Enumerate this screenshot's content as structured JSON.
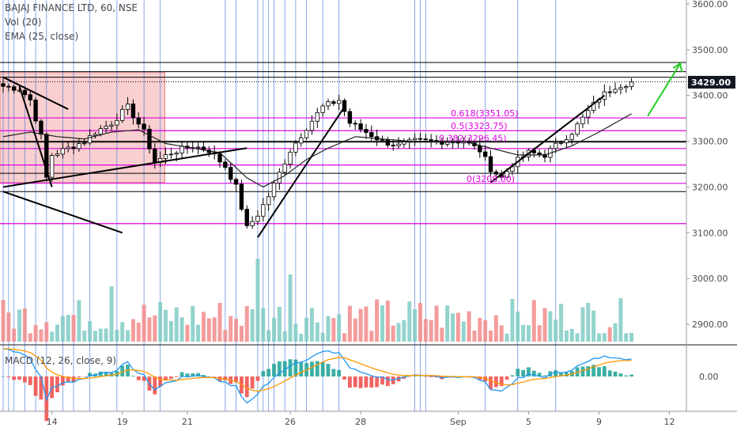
{
  "header": {
    "symbol_line": "BAJAJ FINANCE LTD, 60, NSE",
    "vol_line": "Vol (20)",
    "ema_line": "EMA (25, close)",
    "macd_line": "MACD (12, 26, close, 9)"
  },
  "price_tag": {
    "value": 3429.0,
    "text": "3429.00",
    "color": "#131722"
  },
  "colors": {
    "up": "#26a69a",
    "down": "#ef5350",
    "candle": "#000000",
    "fib": "#e000e0",
    "vline": "#3b6fd8",
    "hline": "#000000",
    "box_fill": "#f4a7a7",
    "ema": "#222222",
    "macd": "#2196f3",
    "signal": "#ff9800",
    "arrow": "#22cc22"
  },
  "chart_data": {
    "type": "candlestick",
    "symbol": "BAJAJ FINANCE LTD",
    "interval": "60",
    "exchange": "NSE",
    "price_axis": {
      "min": 2850,
      "max": 3620,
      "ticks": [
        2900,
        3000,
        3100,
        3200,
        3300,
        3400,
        3500,
        3600
      ],
      "tick_labels": [
        "2900.00",
        "3000.00",
        "3100.00",
        "3200.00",
        "3300.00",
        "3400.00",
        "3500.00",
        "3600.00"
      ]
    },
    "macd_axis": {
      "ticks": [
        0
      ],
      "tick_labels": [
        "0.00"
      ]
    },
    "date_axis": {
      "labels": [
        "14",
        "19",
        "21",
        "26",
        "28",
        "Sep",
        "5",
        "9",
        "12"
      ],
      "bar_index": [
        9,
        22,
        34,
        53,
        66,
        84,
        97,
        110,
        123
      ]
    },
    "bars": 117,
    "close_anchors": [
      [
        0,
        3420
      ],
      [
        3,
        3415
      ],
      [
        5,
        3390
      ],
      [
        7,
        3310
      ],
      [
        8,
        3220
      ],
      [
        9,
        3270
      ],
      [
        12,
        3285
      ],
      [
        15,
        3300
      ],
      [
        17,
        3320
      ],
      [
        20,
        3340
      ],
      [
        23,
        3375
      ],
      [
        26,
        3320
      ],
      [
        28,
        3255
      ],
      [
        31,
        3275
      ],
      [
        35,
        3290
      ],
      [
        38,
        3280
      ],
      [
        41,
        3245
      ],
      [
        43,
        3200
      ],
      [
        45,
        3110
      ],
      [
        47,
        3140
      ],
      [
        49,
        3180
      ],
      [
        51,
        3230
      ],
      [
        53,
        3280
      ],
      [
        56,
        3330
      ],
      [
        59,
        3375
      ],
      [
        62,
        3390
      ],
      [
        64,
        3340
      ],
      [
        67,
        3320
      ],
      [
        70,
        3300
      ],
      [
        73,
        3290
      ],
      [
        76,
        3300
      ],
      [
        79,
        3300
      ],
      [
        82,
        3300
      ],
      [
        85,
        3300
      ],
      [
        88,
        3280
      ],
      [
        90,
        3240
      ],
      [
        92,
        3220
      ],
      [
        94,
        3250
      ],
      [
        97,
        3275
      ],
      [
        100,
        3270
      ],
      [
        102,
        3290
      ],
      [
        105,
        3320
      ],
      [
        107,
        3350
      ],
      [
        110,
        3395
      ],
      [
        113,
        3420
      ],
      [
        116,
        3429
      ]
    ],
    "ema_anchors": [
      [
        0,
        3310
      ],
      [
        5,
        3320
      ],
      [
        10,
        3310
      ],
      [
        15,
        3305
      ],
      [
        20,
        3320
      ],
      [
        25,
        3325
      ],
      [
        30,
        3295
      ],
      [
        35,
        3285
      ],
      [
        40,
        3275
      ],
      [
        45,
        3220
      ],
      [
        48,
        3200
      ],
      [
        52,
        3225
      ],
      [
        56,
        3260
      ],
      [
        60,
        3285
      ],
      [
        65,
        3310
      ],
      [
        70,
        3305
      ],
      [
        75,
        3300
      ],
      [
        80,
        3300
      ],
      [
        85,
        3300
      ],
      [
        90,
        3285
      ],
      [
        95,
        3270
      ],
      [
        100,
        3270
      ],
      [
        105,
        3290
      ],
      [
        110,
        3320
      ],
      [
        116,
        3360
      ]
    ],
    "fibonacci": [
      {
        "level": 0.618,
        "price": 3351.05,
        "label": "0.618(3351.05)"
      },
      {
        "level": 0.5,
        "price": 3323.75,
        "label": "0.5(3323.75)"
      },
      {
        "level": 0.382,
        "price": 3296.45,
        "label": "0.382(3296.45)"
      },
      {
        "level": 0,
        "price": 3208.0,
        "label": "0(3208.00)"
      }
    ],
    "horizontal_lines": {
      "magenta": [
        3351,
        3323,
        3284,
        3248,
        3208,
        3120
      ],
      "black": [
        3472,
        3452,
        3440,
        3300,
        3298,
        3230,
        3190
      ],
      "dotted": [
        3430
      ]
    },
    "vertical_lines_bar_index": [
      0,
      1,
      2,
      4,
      6,
      8,
      11,
      13,
      16,
      21,
      26,
      29,
      41,
      43,
      47,
      48,
      49,
      50,
      52,
      54,
      56,
      59,
      62,
      76,
      77,
      78,
      89,
      95,
      102
    ],
    "rect_zone": {
      "from_bar": 0,
      "to_bar": 29,
      "top": 3450,
      "bottom": 3210
    },
    "trend_lines": [
      {
        "from": [
          0,
          3440
        ],
        "to": [
          12,
          3370
        ]
      },
      {
        "from": [
          0,
          3200
        ],
        "to": [
          45,
          3285
        ]
      },
      {
        "from": [
          0,
          3190
        ],
        "to": [
          22,
          3100
        ]
      },
      {
        "from": [
          3,
          3420
        ],
        "to": [
          9,
          3200
        ]
      },
      {
        "from": [
          47,
          3090
        ],
        "to": [
          63,
          3375
        ]
      },
      {
        "from": [
          90,
          3210
        ],
        "to": [
          111,
          3400
        ]
      }
    ],
    "arrow": {
      "from": [
        119,
        3355
      ],
      "to": [
        125,
        3470
      ]
    },
    "volume": "per-bar columns colored by candle direction",
    "macd": "MACD line, signal line and histogram"
  }
}
